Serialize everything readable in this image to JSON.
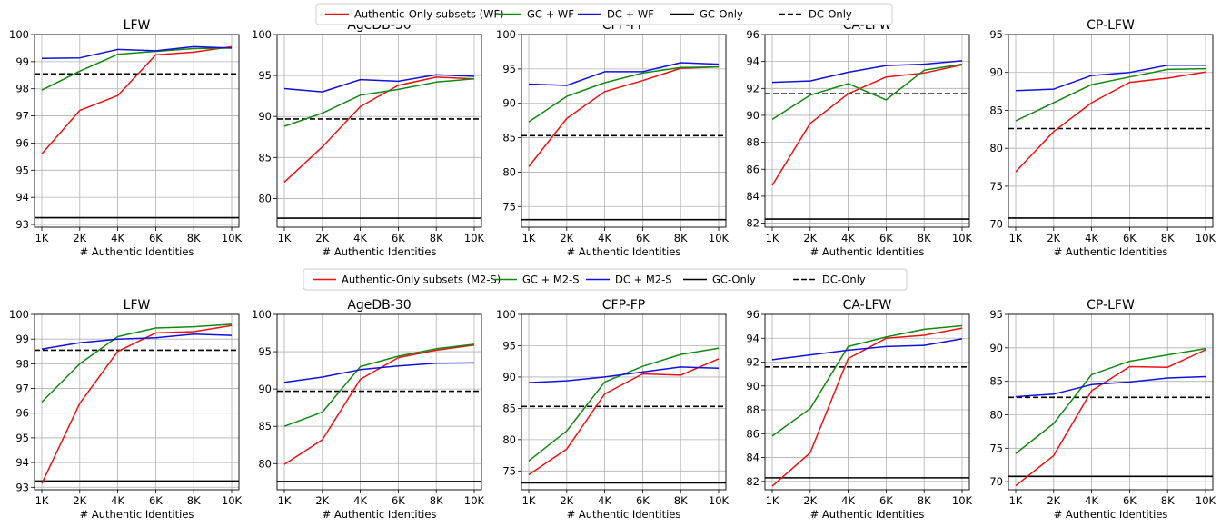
{
  "xlabel": "# Authentic Identities",
  "x_ticks": [
    "1K",
    "2K",
    "4K",
    "6K",
    "8K",
    "10K"
  ],
  "colors": {
    "authentic": "#ee1111",
    "gc": "#118811",
    "dc": "#1111dd",
    "baseline": "#000000"
  },
  "legends": [
    [
      "Authentic-Only subsets (WF)",
      "GC + WF",
      "DC + WF",
      "GC-Only",
      "DC-Only"
    ],
    [
      "Authentic-Only subsets (M2-S)",
      "GC + M2-S",
      "DC + M2-S",
      "GC-Only",
      "DC-Only"
    ]
  ],
  "chart_data": [
    {
      "type": "line",
      "title": "LFW",
      "xlabel": "# Authentic Identities",
      "ylim": [
        92.9,
        100
      ],
      "yticks": [
        93,
        94,
        95,
        96,
        97,
        98,
        99,
        100
      ],
      "x": [
        "1K",
        "2K",
        "4K",
        "6K",
        "8K",
        "10K"
      ],
      "series": [
        {
          "name": "Authentic-Only subsets (WF)",
          "values": [
            95.6,
            97.2,
            97.75,
            99.25,
            99.35,
            99.55
          ]
        },
        {
          "name": "GC + WF",
          "values": [
            97.95,
            98.65,
            99.27,
            99.38,
            99.48,
            99.5
          ]
        },
        {
          "name": "DC + WF",
          "values": [
            99.12,
            99.14,
            99.45,
            99.4,
            99.55,
            99.5
          ]
        }
      ],
      "hlines": [
        {
          "name": "GC-Only",
          "value": 93.25,
          "style": "solid"
        },
        {
          "name": "DC-Only",
          "value": 98.55,
          "style": "dashed"
        }
      ]
    },
    {
      "type": "line",
      "title": "AgeDB-30",
      "xlabel": "# Authentic Identities",
      "ylim": [
        76.5,
        100
      ],
      "yticks": [
        80,
        85,
        90,
        95,
        100
      ],
      "x": [
        "1K",
        "2K",
        "4K",
        "6K",
        "8K",
        "10K"
      ],
      "series": [
        {
          "name": "Authentic-Only subsets (WF)",
          "values": [
            82.0,
            86.3,
            91.2,
            93.8,
            94.8,
            94.6
          ]
        },
        {
          "name": "GC + WF",
          "values": [
            88.8,
            90.4,
            92.6,
            93.3,
            94.2,
            94.6
          ]
        },
        {
          "name": "DC + WF",
          "values": [
            93.4,
            93.0,
            94.5,
            94.3,
            95.1,
            94.9
          ]
        }
      ],
      "hlines": [
        {
          "name": "GC-Only",
          "value": 77.6,
          "style": "solid"
        },
        {
          "name": "DC-Only",
          "value": 89.7,
          "style": "dashed"
        }
      ]
    },
    {
      "type": "line",
      "title": "CFP-FP",
      "xlabel": "# Authentic Identities",
      "ylim": [
        72,
        100
      ],
      "yticks": [
        75,
        80,
        85,
        90,
        95,
        100
      ],
      "x": [
        "1K",
        "2K",
        "4K",
        "6K",
        "8K",
        "10K"
      ],
      "series": [
        {
          "name": "Authentic-Only subsets (WF)",
          "values": [
            80.8,
            87.8,
            91.7,
            93.3,
            95.1,
            95.3
          ]
        },
        {
          "name": "GC + WF",
          "values": [
            87.3,
            91.0,
            93.0,
            94.4,
            95.2,
            95.3
          ]
        },
        {
          "name": "DC + WF",
          "values": [
            92.8,
            92.6,
            94.6,
            94.6,
            95.9,
            95.7
          ]
        }
      ],
      "hlines": [
        {
          "name": "GC-Only",
          "value": 73.1,
          "style": "solid"
        },
        {
          "name": "DC-Only",
          "value": 85.3,
          "style": "dashed"
        }
      ]
    },
    {
      "type": "line",
      "title": "CA-LFW",
      "xlabel": "# Authentic Identities",
      "ylim": [
        81.7,
        96
      ],
      "yticks": [
        82,
        84,
        86,
        88,
        90,
        92,
        94,
        96
      ],
      "x": [
        "1K",
        "2K",
        "4K",
        "6K",
        "8K",
        "10K"
      ],
      "series": [
        {
          "name": "Authentic-Only subsets (WF)",
          "values": [
            84.8,
            89.4,
            91.6,
            92.85,
            93.15,
            93.75
          ]
        },
        {
          "name": "GC + WF",
          "values": [
            89.7,
            91.5,
            92.35,
            91.15,
            93.35,
            93.8
          ]
        },
        {
          "name": "DC + WF",
          "values": [
            92.45,
            92.55,
            93.2,
            93.7,
            93.8,
            94.05
          ]
        }
      ],
      "hlines": [
        {
          "name": "GC-Only",
          "value": 82.3,
          "style": "solid"
        },
        {
          "name": "DC-Only",
          "value": 91.6,
          "style": "dashed"
        }
      ]
    },
    {
      "type": "line",
      "title": "CP-LFW",
      "xlabel": "# Authentic Identities",
      "ylim": [
        69.6,
        95
      ],
      "yticks": [
        70,
        75,
        80,
        85,
        90,
        95
      ],
      "x": [
        "1K",
        "2K",
        "4K",
        "6K",
        "8K",
        "10K"
      ],
      "series": [
        {
          "name": "Authentic-Only subsets (WF)",
          "values": [
            76.9,
            82.2,
            86.0,
            88.7,
            89.25,
            90.05
          ]
        },
        {
          "name": "GC + WF",
          "values": [
            83.6,
            86.0,
            88.4,
            89.4,
            90.4,
            90.5
          ]
        },
        {
          "name": "DC + WF",
          "values": [
            87.6,
            87.8,
            89.6,
            90.0,
            90.95,
            90.95
          ]
        }
      ],
      "hlines": [
        {
          "name": "GC-Only",
          "value": 70.8,
          "style": "solid"
        },
        {
          "name": "DC-Only",
          "value": 82.6,
          "style": "dashed"
        }
      ]
    },
    {
      "type": "line",
      "title": "LFW",
      "xlabel": "# Authentic Identities",
      "ylim": [
        92.9,
        100
      ],
      "yticks": [
        93,
        94,
        95,
        96,
        97,
        98,
        99,
        100
      ],
      "x": [
        "1K",
        "2K",
        "4K",
        "6K",
        "8K",
        "10K"
      ],
      "series": [
        {
          "name": "Authentic-Only subsets (M2-S)",
          "values": [
            93.15,
            96.4,
            98.5,
            99.25,
            99.3,
            99.55
          ]
        },
        {
          "name": "GC + M2-S",
          "values": [
            96.45,
            98.0,
            99.1,
            99.45,
            99.5,
            99.6
          ]
        },
        {
          "name": "DC + M2-S",
          "values": [
            98.6,
            98.85,
            99.0,
            99.05,
            99.2,
            99.15
          ]
        }
      ],
      "hlines": [
        {
          "name": "GC-Only",
          "value": 93.25,
          "style": "solid"
        },
        {
          "name": "DC-Only",
          "value": 98.55,
          "style": "dashed"
        }
      ]
    },
    {
      "type": "line",
      "title": "AgeDB-30",
      "xlabel": "# Authentic Identities",
      "ylim": [
        76.5,
        100
      ],
      "yticks": [
        80,
        85,
        90,
        95,
        100
      ],
      "x": [
        "1K",
        "2K",
        "4K",
        "6K",
        "8K",
        "10K"
      ],
      "series": [
        {
          "name": "Authentic-Only subsets (M2-S)",
          "values": [
            79.9,
            83.2,
            91.3,
            94.2,
            95.2,
            95.9
          ]
        },
        {
          "name": "GC + M2-S",
          "values": [
            85.0,
            86.9,
            93.0,
            94.4,
            95.4,
            96.0
          ]
        },
        {
          "name": "DC + M2-S",
          "values": [
            90.9,
            91.6,
            92.6,
            93.1,
            93.45,
            93.5
          ]
        }
      ],
      "hlines": [
        {
          "name": "GC-Only",
          "value": 77.6,
          "style": "solid"
        },
        {
          "name": "DC-Only",
          "value": 89.7,
          "style": "dashed"
        }
      ]
    },
    {
      "type": "line",
      "title": "CFP-FP",
      "xlabel": "# Authentic Identities",
      "ylim": [
        72,
        100
      ],
      "yticks": [
        75,
        80,
        85,
        90,
        95,
        100
      ],
      "x": [
        "1K",
        "2K",
        "4K",
        "6K",
        "8K",
        "10K"
      ],
      "series": [
        {
          "name": "Authentic-Only subsets (M2-S)",
          "values": [
            74.4,
            78.5,
            87.3,
            90.5,
            90.3,
            92.9
          ]
        },
        {
          "name": "GC + M2-S",
          "values": [
            76.6,
            81.4,
            89.2,
            91.7,
            93.6,
            94.6
          ]
        },
        {
          "name": "DC + M2-S",
          "values": [
            89.1,
            89.4,
            90.0,
            90.8,
            91.6,
            91.4
          ]
        }
      ],
      "hlines": [
        {
          "name": "GC-Only",
          "value": 73.1,
          "style": "solid"
        },
        {
          "name": "DC-Only",
          "value": 85.3,
          "style": "dashed"
        }
      ]
    },
    {
      "type": "line",
      "title": "CA-LFW",
      "xlabel": "# Authentic Identities",
      "ylim": [
        81.3,
        96
      ],
      "yticks": [
        82,
        84,
        86,
        88,
        90,
        92,
        94,
        96
      ],
      "x": [
        "1K",
        "2K",
        "4K",
        "6K",
        "8K",
        "10K"
      ],
      "series": [
        {
          "name": "Authentic-Only subsets (M2-S)",
          "values": [
            81.6,
            84.4,
            92.3,
            94.0,
            94.25,
            94.85
          ]
        },
        {
          "name": "GC + M2-S",
          "values": [
            85.8,
            88.1,
            93.3,
            94.1,
            94.75,
            95.05
          ]
        },
        {
          "name": "DC + M2-S",
          "values": [
            92.2,
            92.6,
            93.0,
            93.3,
            93.4,
            93.95
          ]
        }
      ],
      "hlines": [
        {
          "name": "GC-Only",
          "value": 82.3,
          "style": "solid"
        },
        {
          "name": "DC-Only",
          "value": 91.6,
          "style": "dashed"
        }
      ]
    },
    {
      "type": "line",
      "title": "CP-LFW",
      "xlabel": "# Authentic Identities",
      "ylim": [
        68.8,
        95
      ],
      "yticks": [
        70,
        75,
        80,
        85,
        90,
        95
      ],
      "x": [
        "1K",
        "2K",
        "4K",
        "6K",
        "8K",
        "10K"
      ],
      "series": [
        {
          "name": "Authentic-Only subsets (M2-S)",
          "values": [
            69.4,
            73.9,
            83.6,
            87.2,
            87.1,
            89.7
          ]
        },
        {
          "name": "GC + M2-S",
          "values": [
            74.2,
            78.7,
            86.0,
            88.0,
            88.95,
            89.9
          ]
        },
        {
          "name": "DC + M2-S",
          "values": [
            82.7,
            83.1,
            84.5,
            84.9,
            85.5,
            85.7
          ]
        }
      ],
      "hlines": [
        {
          "name": "GC-Only",
          "value": 70.8,
          "style": "solid"
        },
        {
          "name": "DC-Only",
          "value": 82.6,
          "style": "dashed"
        }
      ]
    }
  ]
}
